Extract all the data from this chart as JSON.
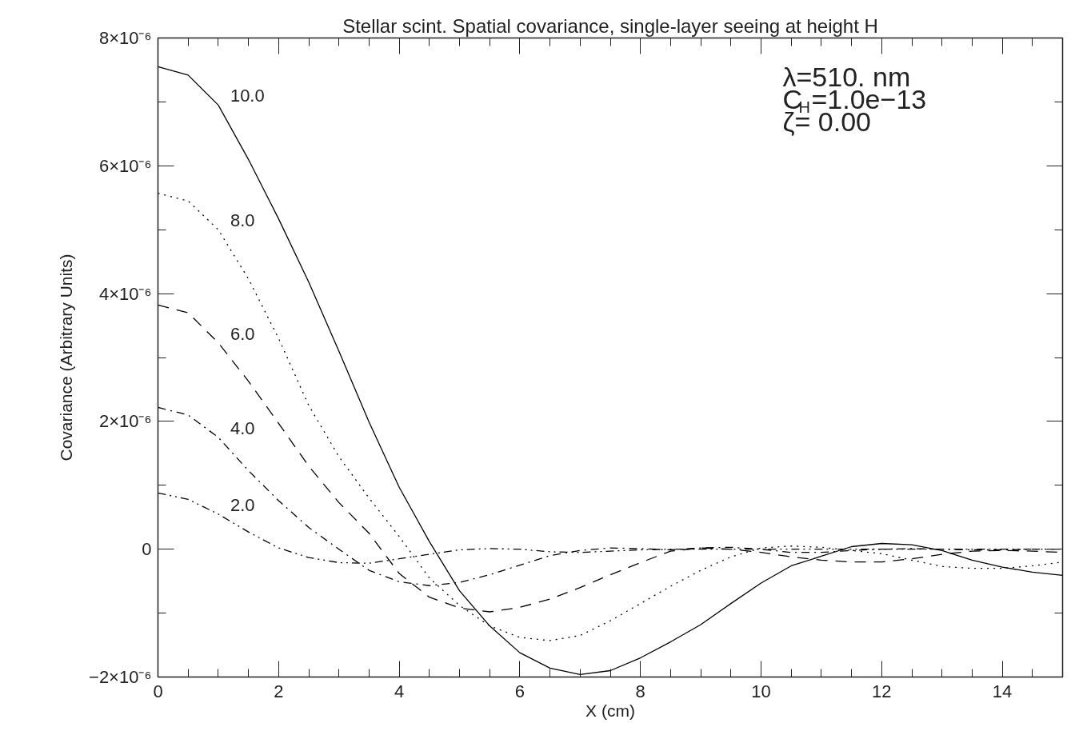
{
  "chart_data": {
    "type": "line",
    "title": "Stellar scint. Spatial covariance, single-layer seeing at height H",
    "xlabel": "X (cm)",
    "ylabel": "Covariance (Arbitrary Units)",
    "x": [
      0,
      0.5,
      1,
      1.5,
      2,
      2.5,
      3,
      3.5,
      4,
      4.5,
      5,
      5.5,
      6,
      6.5,
      7,
      7.5,
      8,
      8.5,
      9,
      9.5,
      10,
      10.5,
      11,
      11.5,
      12,
      12.5,
      13,
      13.5,
      14,
      14.5,
      15
    ],
    "series": [
      {
        "name": "10.0",
        "color": "#000000",
        "line_style": "solid",
        "values": [
          7.55e-06,
          7.42e-06,
          6.95e-06,
          6.1e-06,
          5.17e-06,
          4.18e-06,
          3.1e-06,
          1.99e-06,
          9.7e-07,
          1.2e-07,
          -6.5e-07,
          -1.2e-06,
          -1.62e-06,
          -1.86e-06,
          -1.96e-06,
          -1.9e-06,
          -1.7e-06,
          -1.45e-06,
          -1.18e-06,
          -8.5e-07,
          -5.3e-07,
          -2.6e-07,
          -1.1e-07,
          4e-08,
          9e-08,
          7e-08,
          -2e-08,
          -1.7e-07,
          -2.8e-07,
          -3.6e-07,
          -4.1e-07
        ]
      },
      {
        "name": "8.0",
        "color": "#000000",
        "line_style": "dotted",
        "values": [
          5.57e-06,
          5.45e-06,
          5e-06,
          4.23e-06,
          3.3e-06,
          2.25e-06,
          1.45e-06,
          8e-07,
          2e-07,
          -4.5e-07,
          -8.8e-07,
          -1.2e-06,
          -1.38e-06,
          -1.43e-06,
          -1.35e-06,
          -1.12e-06,
          -8.5e-07,
          -5.8e-07,
          -3.3e-07,
          -1.2e-07,
          2e-08,
          5e-08,
          3e-08,
          -2e-08,
          -7e-08,
          -1.7e-07,
          -2.7e-07,
          -3e-07,
          -3e-07,
          -2.6e-07,
          -2e-07
        ]
      },
      {
        "name": "6.0",
        "color": "#000000",
        "line_style": "dashed",
        "values": [
          3.82e-06,
          3.7e-06,
          3.23e-06,
          2.63e-06,
          1.97e-06,
          1.3e-06,
          7.3e-07,
          2.5e-07,
          -3.8e-07,
          -7.5e-07,
          -9.2e-07,
          -9.8e-07,
          -9.1e-07,
          -7.8e-07,
          -6e-07,
          -4e-07,
          -2.1e-07,
          -3e-08,
          2e-08,
          0.0,
          -5e-08,
          -1.2e-07,
          -1.7e-07,
          -2e-07,
          -2e-07,
          -1.5e-07,
          -8e-08,
          -3e-08,
          -2e-08,
          -3e-08,
          -5e-08
        ]
      },
      {
        "name": "4.0",
        "color": "#000000",
        "line_style": "dashdot",
        "values": [
          2.22e-06,
          2.1e-06,
          1.75e-06,
          1.23e-06,
          7.6e-07,
          3.4e-07,
          0.0,
          -3.3e-07,
          -5.1e-07,
          -5.7e-07,
          -5.2e-07,
          -4e-07,
          -2.5e-07,
          -1e-07,
          -2e-08,
          2e-08,
          1e-08,
          -1e-08,
          2e-08,
          3e-08,
          0.0,
          -5e-08,
          -5e-08,
          -2e-08,
          0.0,
          1e-08,
          0.0,
          -1e-08,
          -1e-08,
          0.0,
          0.0
        ]
      },
      {
        "name": "2.0",
        "color": "#000000",
        "line_style": "dashdotdot",
        "values": [
          8.8e-07,
          7.8e-07,
          5.5e-07,
          2.7e-07,
          2e-08,
          -1.3e-07,
          -2.1e-07,
          -2.2e-07,
          -1.5e-07,
          -8e-08,
          -1e-08,
          1e-08,
          0.0,
          -4e-08,
          -5e-08,
          -3e-08,
          -1e-08,
          0.0,
          0.0,
          0.0,
          0.0,
          0.0,
          0.0,
          0.0,
          0.0,
          0.0,
          0.0,
          0.0,
          0.0,
          0.0,
          0.0
        ]
      }
    ],
    "xlim": [
      0,
      15
    ],
    "xticks": [
      0,
      2,
      4,
      6,
      8,
      10,
      12,
      14
    ],
    "ylim": [
      -2e-06,
      8e-06
    ],
    "yticks": [
      {
        "value": -2e-06,
        "label": "−2×10⁻⁶"
      },
      {
        "value": 0,
        "label": "0"
      },
      {
        "value": 2e-06,
        "label": "2×10⁻⁶"
      },
      {
        "value": 4e-06,
        "label": "4×10⁻⁶"
      },
      {
        "value": 6e-06,
        "label": "6×10⁻⁶"
      },
      {
        "value": 8e-06,
        "label": "8×10⁻⁶"
      }
    ],
    "annotations": [
      "λ=510. nm",
      "C$_{H}$=1.0e−13",
      "ζ= 0.00"
    ],
    "grid": false,
    "marker": "none"
  }
}
